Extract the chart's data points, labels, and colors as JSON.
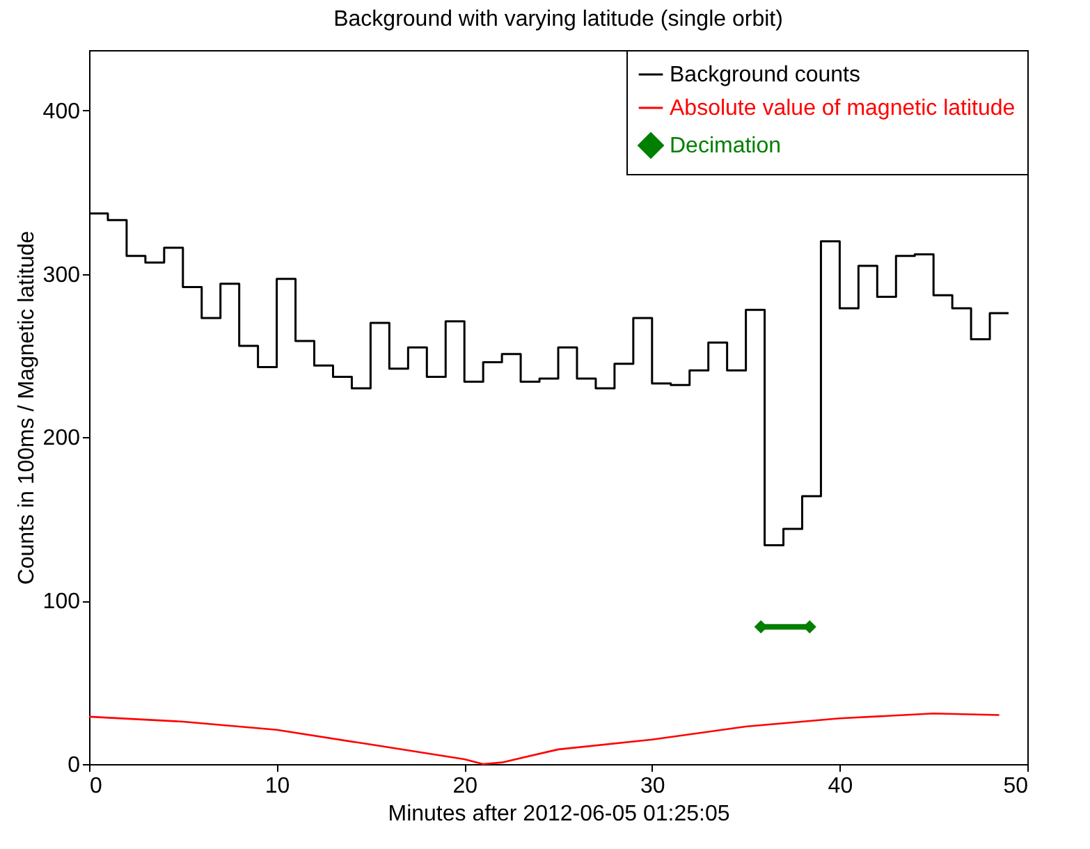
{
  "chart_data": {
    "type": "step",
    "title": "Background with varying latitude (single orbit)",
    "xlabel": "Minutes after 2012-06-05 01:25:05",
    "ylabel": "Counts in 100ms / Magnetic latitude",
    "xlim": [
      0,
      50
    ],
    "xticks": [
      0,
      10,
      20,
      30,
      40,
      50
    ],
    "ylim": [
      0,
      437
    ],
    "yticks": [
      0,
      100,
      200,
      300,
      400
    ],
    "legend": "top right",
    "grid": false,
    "series": [
      {
        "name": "Background counts",
        "color": "#000000",
        "x": [
          0,
          1,
          2,
          3,
          4,
          5,
          6,
          7,
          8,
          9,
          10,
          11,
          12,
          13,
          14,
          15,
          16,
          17,
          18,
          19,
          20,
          21,
          22,
          23,
          24,
          25,
          26,
          27,
          28,
          29,
          30,
          31,
          32,
          33,
          34,
          35,
          36,
          37,
          38,
          39,
          40,
          41,
          42,
          43,
          44,
          45,
          46,
          47,
          48,
          49
        ],
        "values": [
          337,
          333,
          311,
          307,
          316,
          292,
          273,
          294,
          256,
          243,
          297,
          259,
          244,
          237,
          230,
          270,
          242,
          255,
          237,
          271,
          234,
          246,
          251,
          234,
          236,
          255,
          236,
          230,
          245,
          273,
          233,
          232,
          241,
          258,
          241,
          278,
          134,
          144,
          164,
          320,
          279,
          305,
          286,
          311,
          312,
          287,
          279,
          260,
          276,
          276
        ]
      },
      {
        "name": "Absolute value of magnetic latitude",
        "type": "line",
        "color": "#ff0000",
        "x": [
          0,
          5,
          10,
          15,
          20,
          21,
          22,
          25,
          30,
          35,
          40,
          45,
          48.5
        ],
        "values": [
          29,
          26,
          21,
          12,
          3,
          0,
          1,
          9,
          15,
          23,
          28,
          31,
          30
        ]
      },
      {
        "name": "Decimation",
        "type": "line",
        "marker": "diamond",
        "color": "#007f00",
        "x": [
          35.8,
          38.4
        ],
        "values": [
          84,
          84
        ]
      }
    ]
  }
}
